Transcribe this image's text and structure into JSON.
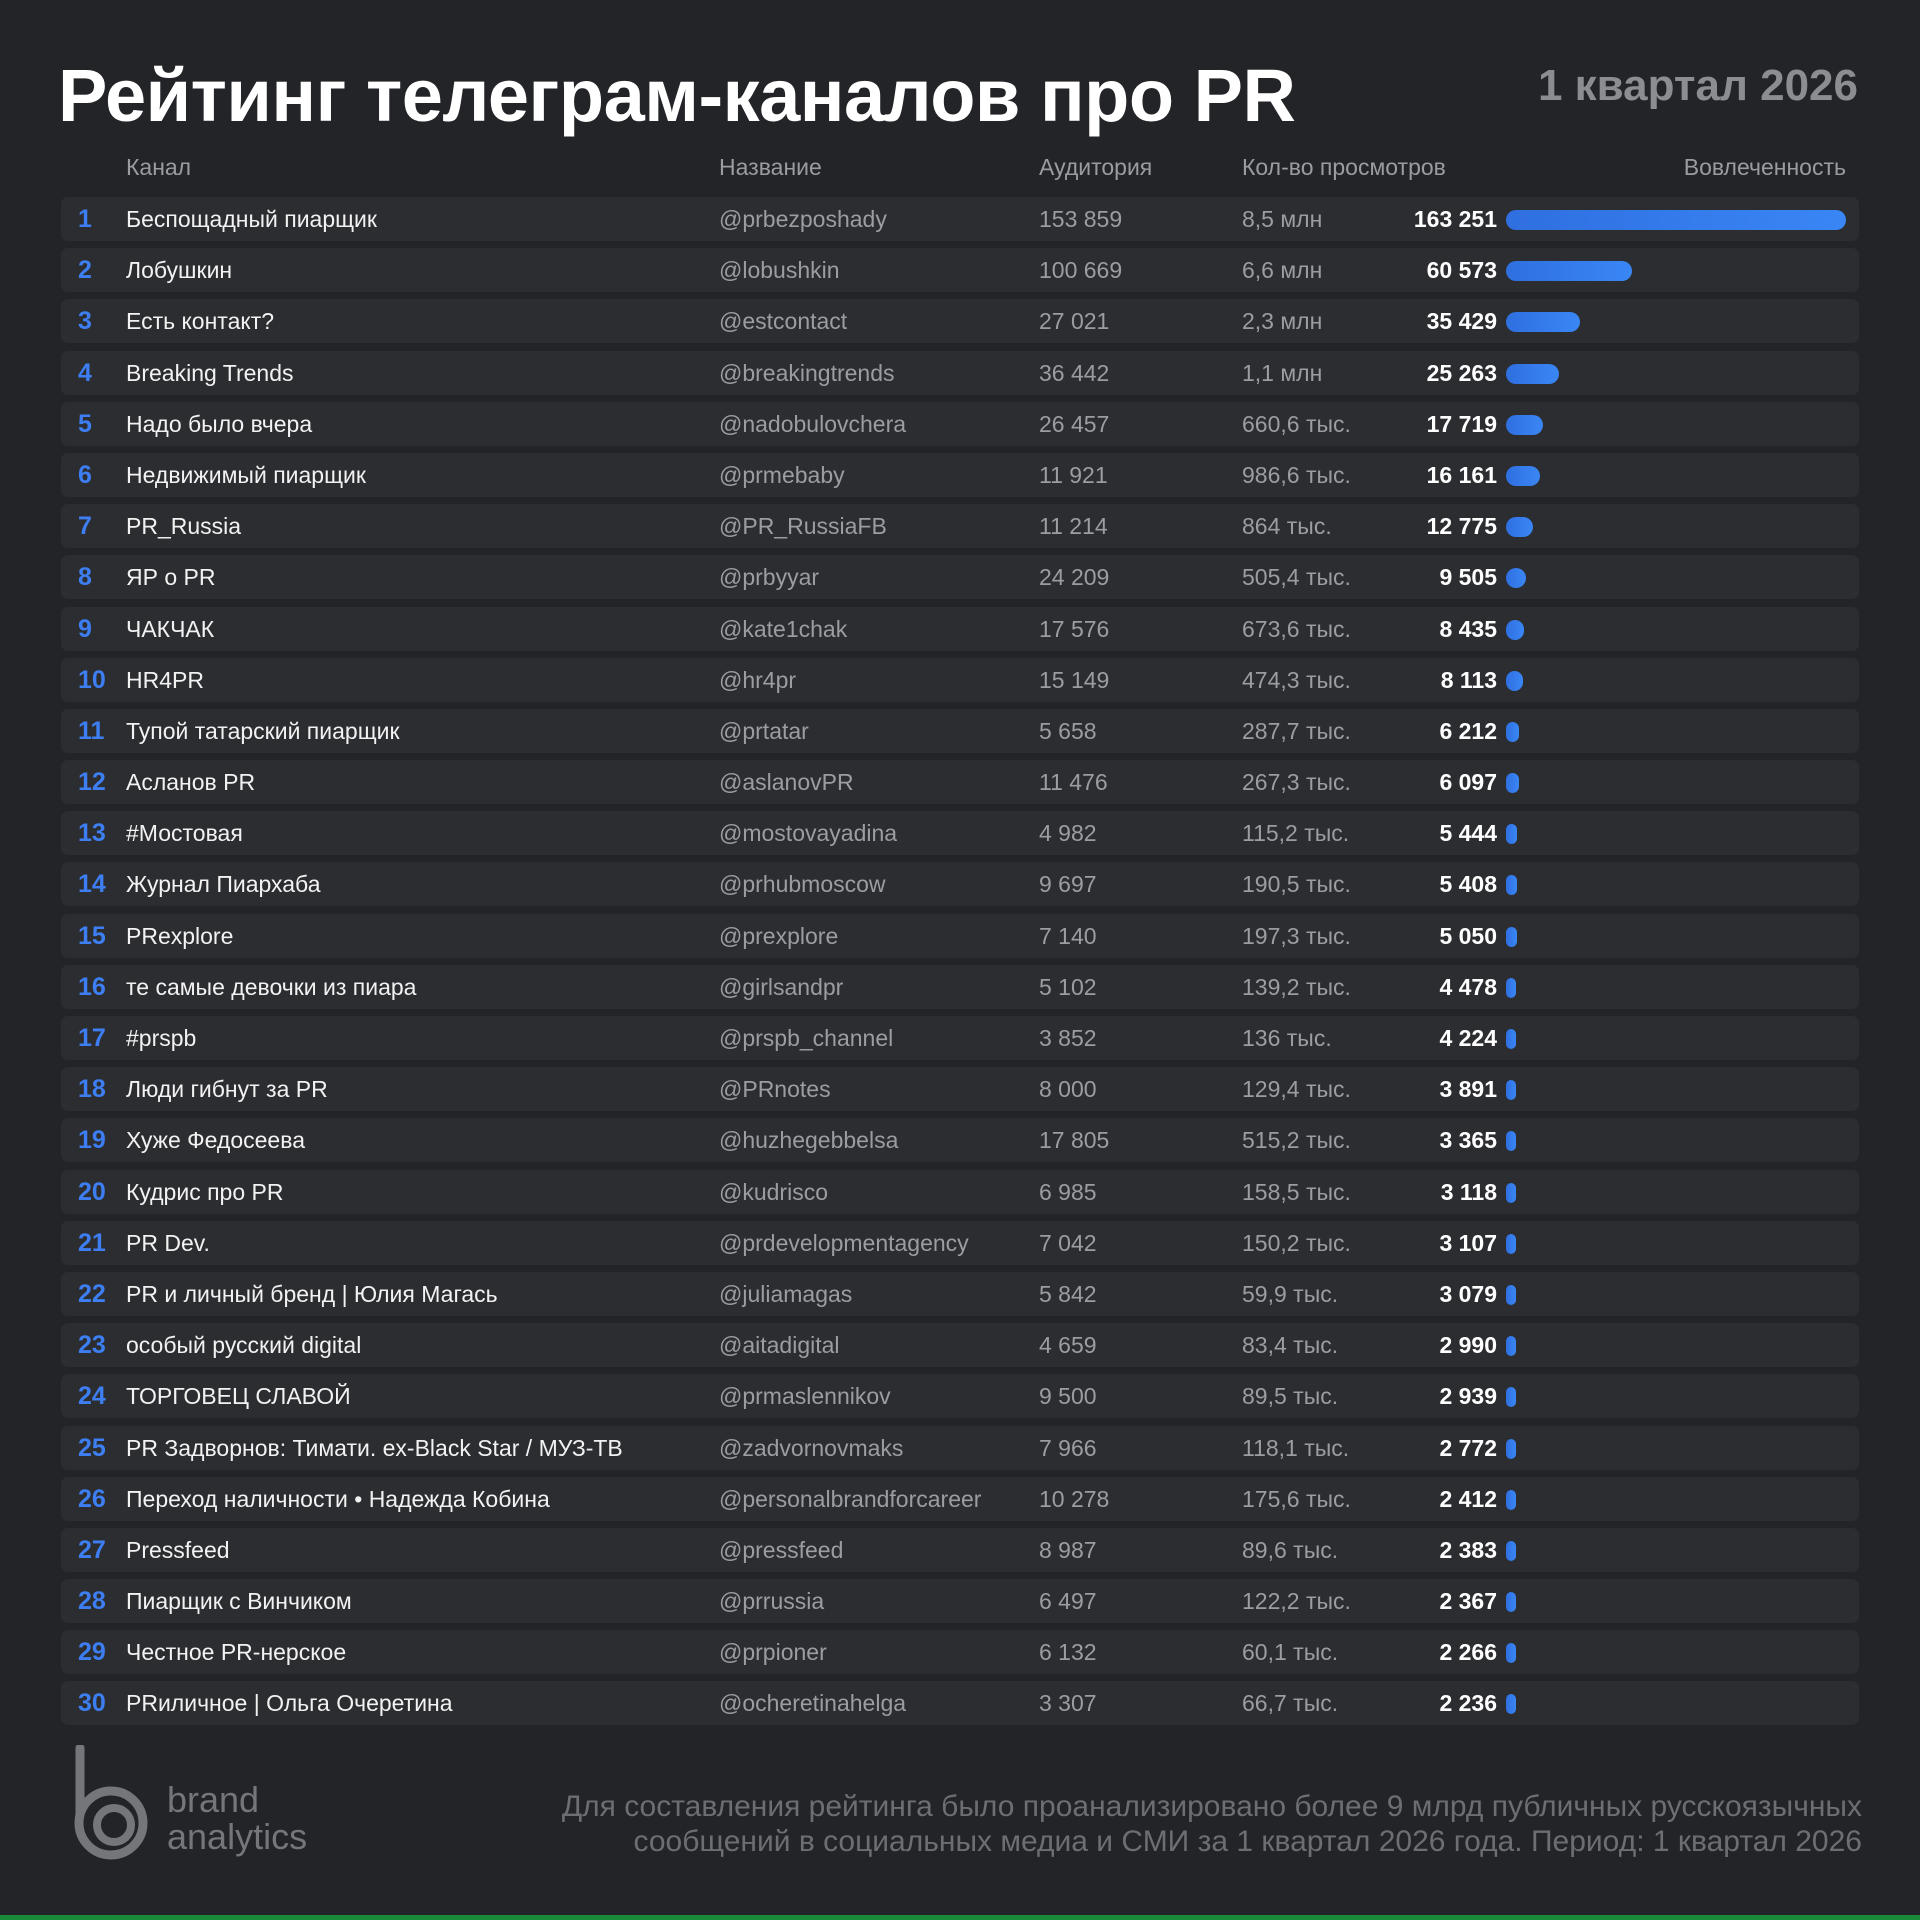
{
  "header": {
    "title": "Рейтинг телеграм-каналов про PR",
    "period": "1 квартал 2026"
  },
  "columns": {
    "channel": "Канал",
    "handle": "Название",
    "audience": "Аудитория",
    "views": "Кол-во просмотров",
    "engagement": "Вовлеченность"
  },
  "chart_data": {
    "type": "table",
    "title": "Рейтинг телеграм-каналов про PR",
    "subtitle": "1 квартал 2026",
    "columns": [
      "Канал",
      "Название",
      "Аудитория",
      "Кол-во просмотров",
      "Вовлеченность"
    ],
    "bar_column": "Вовлеченность",
    "rows": [
      {
        "rank": "1",
        "channel": "Беспощадный пиарщик",
        "handle": "@prbezposhady",
        "audience": "153 859",
        "views": "8,5 млн",
        "engagement_label": "163 251",
        "engagement": 163251
      },
      {
        "rank": "2",
        "channel": "Лобушкин",
        "handle": "@lobushkin",
        "audience": "100 669",
        "views": "6,6 млн",
        "engagement_label": "60 573",
        "engagement": 60573
      },
      {
        "rank": "3",
        "channel": "Есть контакт?",
        "handle": "@estcontact",
        "audience": "27 021",
        "views": "2,3 млн",
        "engagement_label": "35 429",
        "engagement": 35429
      },
      {
        "rank": "4",
        "channel": "Breaking Trends",
        "handle": "@breakingtrends",
        "audience": "36 442",
        "views": "1,1 млн",
        "engagement_label": "25 263",
        "engagement": 25263
      },
      {
        "rank": "5",
        "channel": "Надо было вчера",
        "handle": "@nadobulovchera",
        "audience": "26 457",
        "views": "660,6 тыс.",
        "engagement_label": "17 719",
        "engagement": 17719
      },
      {
        "rank": "6",
        "channel": "Недвижимый пиарщик",
        "handle": "@prmebaby",
        "audience": "11 921",
        "views": "986,6 тыс.",
        "engagement_label": "16 161",
        "engagement": 16161
      },
      {
        "rank": "7",
        "channel": "PR_Russia",
        "handle": "@PR_RussiaFB",
        "audience": "11 214",
        "views": "864 тыс.",
        "engagement_label": "12 775",
        "engagement": 12775
      },
      {
        "rank": "8",
        "channel": "ЯР о PR",
        "handle": "@prbyyar",
        "audience": "24 209",
        "views": "505,4 тыс.",
        "engagement_label": "9 505",
        "engagement": 9505
      },
      {
        "rank": "9",
        "channel": "ЧАКЧАК",
        "handle": "@kate1chak",
        "audience": "17 576",
        "views": "673,6 тыс.",
        "engagement_label": "8 435",
        "engagement": 8435
      },
      {
        "rank": "10",
        "channel": "HR4PR",
        "handle": "@hr4pr",
        "audience": "15 149",
        "views": "474,3 тыс.",
        "engagement_label": "8 113",
        "engagement": 8113
      },
      {
        "rank": "11",
        "channel": "Тупой татарский пиарщик",
        "handle": "@prtatar",
        "audience": "5 658",
        "views": "287,7 тыс.",
        "engagement_label": "6 212",
        "engagement": 6212
      },
      {
        "rank": "12",
        "channel": "Асланов PR",
        "handle": "@aslanovPR",
        "audience": "11 476",
        "views": "267,3 тыс.",
        "engagement_label": "6 097",
        "engagement": 6097
      },
      {
        "rank": "13",
        "channel": "#Мостовая",
        "handle": "@mostovayadina",
        "audience": "4 982",
        "views": "115,2 тыс.",
        "engagement_label": "5 444",
        "engagement": 5444
      },
      {
        "rank": "14",
        "channel": "Журнал Пиархаба",
        "handle": "@prhubmoscow",
        "audience": "9 697",
        "views": "190,5 тыс.",
        "engagement_label": "5 408",
        "engagement": 5408
      },
      {
        "rank": "15",
        "channel": "PRexplore",
        "handle": "@prexplore",
        "audience": "7 140",
        "views": "197,3 тыс.",
        "engagement_label": "5 050",
        "engagement": 5050
      },
      {
        "rank": "16",
        "channel": "те самые девочки из пиара",
        "handle": "@girlsandpr",
        "audience": "5 102",
        "views": "139,2 тыс.",
        "engagement_label": "4 478",
        "engagement": 4478
      },
      {
        "rank": "17",
        "channel": "#prspb",
        "handle": "@prspb_channel",
        "audience": "3 852",
        "views": "136 тыс.",
        "engagement_label": "4 224",
        "engagement": 4224
      },
      {
        "rank": "18",
        "channel": "Люди гибнут за PR",
        "handle": "@PRnotes",
        "audience": "8 000",
        "views": "129,4 тыс.",
        "engagement_label": "3 891",
        "engagement": 3891
      },
      {
        "rank": "19",
        "channel": "Хуже Федосеева",
        "handle": "@huzhegebbelsa",
        "audience": "17 805",
        "views": "515,2 тыс.",
        "engagement_label": "3 365",
        "engagement": 3365
      },
      {
        "rank": "20",
        "channel": "Кудрис про PR",
        "handle": "@kudrisco",
        "audience": "6 985",
        "views": "158,5 тыс.",
        "engagement_label": "3 118",
        "engagement": 3118
      },
      {
        "rank": "21",
        "channel": "PR Dev.",
        "handle": "@prdevelopmentagency",
        "audience": "7 042",
        "views": "150,2 тыс.",
        "engagement_label": "3 107",
        "engagement": 3107
      },
      {
        "rank": "22",
        "channel": "PR и личный бренд | Юлия Магась",
        "handle": "@juliamagas",
        "audience": "5 842",
        "views": "59,9 тыс.",
        "engagement_label": "3 079",
        "engagement": 3079
      },
      {
        "rank": "23",
        "channel": "особый русский digital",
        "handle": "@aitadigital",
        "audience": "4 659",
        "views": "83,4 тыс.",
        "engagement_label": "2 990",
        "engagement": 2990
      },
      {
        "rank": "24",
        "channel": "ТОРГОВЕЦ СЛАВОЙ",
        "handle": "@prmaslennikov",
        "audience": "9 500",
        "views": "89,5 тыс.",
        "engagement_label": "2 939",
        "engagement": 2939
      },
      {
        "rank": "25",
        "channel": "PR Задворнов: Тимати. ex-Black Star / МУЗ-ТВ",
        "handle": "@zadvornovmaks",
        "audience": "7 966",
        "views": "118,1 тыс.",
        "engagement_label": "2 772",
        "engagement": 2772
      },
      {
        "rank": "26",
        "channel": "Переход наличности • Надежда Кобина",
        "handle": "@personalbrandforcareer",
        "audience": "10 278",
        "views": "175,6 тыс.",
        "engagement_label": "2 412",
        "engagement": 2412
      },
      {
        "rank": "27",
        "channel": "Pressfeed",
        "handle": "@pressfeed",
        "audience": "8 987",
        "views": "89,6 тыс.",
        "engagement_label": "2 383",
        "engagement": 2383
      },
      {
        "rank": "28",
        "channel": "Пиарщик с Винчиком",
        "handle": "@prrussia",
        "audience": "6 497",
        "views": "122,2 тыс.",
        "engagement_label": "2 367",
        "engagement": 2367
      },
      {
        "rank": "29",
        "channel": "Честное PR-нерское",
        "handle": "@prpioner",
        "audience": "6 132",
        "views": "60,1 тыс.",
        "engagement_label": "2 266",
        "engagement": 2266
      },
      {
        "rank": "30",
        "channel": "PRиличное | Ольга Очеретина",
        "handle": "@ocheretinahelga",
        "audience": "3 307",
        "views": "66,7 тыс.",
        "engagement_label": "2 236",
        "engagement": 2236
      }
    ]
  },
  "logo": {
    "line1": "brand",
    "line2": "analytics",
    "icon": "brand-analytics-logo-icon"
  },
  "footer": {
    "line1": "Для составления рейтинга было проанализировано более 9 млрд публичных русскоязычных",
    "line2": "сообщений в социальных медиа и СМИ за 1 квартал 2026 года. Период: 1 квартал 2026"
  },
  "colors": {
    "background": "#232427",
    "row": "#2c2d31",
    "accent": "#3a86f5",
    "rank": "#3d7ef2"
  }
}
